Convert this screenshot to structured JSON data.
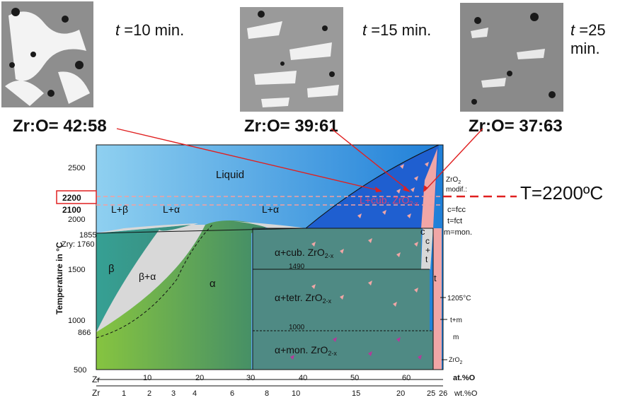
{
  "micrographs": [
    {
      "time_prefix": "t",
      "time_value": " =10 min.",
      "ratio": "Zr:O= 42:58"
    },
    {
      "time_prefix": "t",
      "time_value": " =15 min.",
      "ratio": "Zr:O= 39:61"
    },
    {
      "time_prefix": "t",
      "time_value": " =25 min.",
      "ratio": "Zr:O= 37:63"
    }
  ],
  "temperature_marker": "T=2200ºC",
  "y_axis": {
    "title": "Temperature in °C",
    "ticks": [
      "2500",
      "2000",
      "1500",
      "1000",
      "500"
    ],
    "boxed_tick": "2200",
    "bold_tick": "2100",
    "extra_ticks": [
      "1855",
      "Zry: 1760",
      "866"
    ]
  },
  "x_axis_top": {
    "ticks": [
      "Zr",
      "10",
      "20",
      "30",
      "40",
      "50",
      "60",
      "at.%O"
    ]
  },
  "x_axis_bottom": {
    "ticks": [
      "Zr",
      "1",
      "2",
      "3",
      "4",
      "6",
      "8",
      "10",
      "15",
      "20",
      "25",
      "26",
      "wt.%O"
    ]
  },
  "phases": {
    "liquid": "Liquid",
    "l_beta": "L+β",
    "l_alpha_1": "L+α",
    "l_alpha_2": "L+α",
    "l_cub": "L+cub. ZrO",
    "l_cub_sub": "2-x",
    "beta": "β",
    "beta_alpha": "β+α",
    "alpha": "α",
    "alpha_cub": "α+cub. ZrO",
    "alpha_cub_sub": "2-x",
    "alpha_tetr": "α+tetr. ZrO",
    "alpha_tetr_sub": "2-x",
    "alpha_mon": "α+mon. ZrO",
    "alpha_mon_sub": "2-x",
    "c": "c",
    "c_t_1": "c",
    "c_t_2": "+",
    "c_t_3": "t",
    "t": "t",
    "isotherm_1490": "1490",
    "isotherm_1000": "1000"
  },
  "legend": {
    "zro2_modif_1": "ZrO",
    "zro2_modif_sub": "2",
    "zro2_modif_2": "modif.:",
    "cfcc": "c=fcc",
    "tfct": "t=fct",
    "mmon": "m=mon.",
    "t1205": "1205°C",
    "tm": "t+m",
    "m": "m",
    "zro2": "ZrO",
    "zro2_sub": "2"
  },
  "colors": {
    "liquid_light": "#8fd0f0",
    "liquid_dark": "#1f7fd8",
    "l_cub": "#1f5fd0",
    "beta": "#3a9a8c",
    "alpha_light": "#86c440",
    "alpha_dark": "#3f8a6a",
    "two_phase_gray": "#4f8a84",
    "mixed_gray": "#d8d8d8",
    "oxide_pink": "#f1a6a6",
    "arrow_red": "#e02020"
  }
}
